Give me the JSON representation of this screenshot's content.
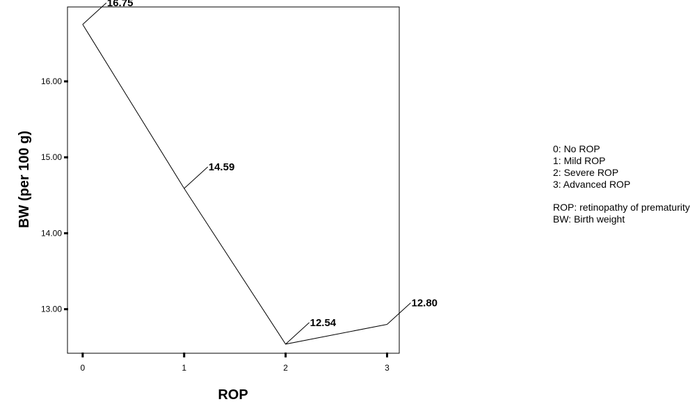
{
  "chart_data": {
    "type": "line",
    "xlabel": "ROP",
    "ylabel": "BW (per 100 g)",
    "x": [
      0,
      1,
      2,
      3
    ],
    "x_ticks": [
      "0",
      "1",
      "2",
      "3"
    ],
    "y_ticks": [
      "13.00",
      "14.00",
      "15.00",
      "16.00"
    ],
    "xlim": [
      -0.15,
      3.12
    ],
    "ylim": [
      12.42,
      16.98
    ],
    "series": [
      {
        "values": [
          16.75,
          14.59,
          12.54,
          12.8
        ],
        "labels": [
          "16.75",
          "14.59",
          "12.54",
          "12.80"
        ]
      }
    ],
    "grid": false
  },
  "legend": {
    "category_lines": [
      "0: No ROP",
      "1: Mild ROP",
      "2: Severe ROP",
      "3: Advanced ROP"
    ],
    "note_lines": [
      "ROP: retinopathy of prematurity",
      "BW: Birth weight"
    ]
  }
}
